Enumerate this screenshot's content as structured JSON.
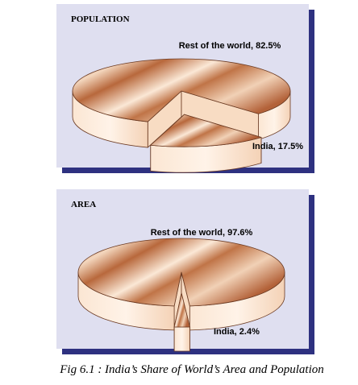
{
  "chart_data": [
    {
      "type": "pie",
      "title": "POPULATION",
      "values": [
        82.5,
        17.5
      ],
      "value_labels": [
        "Rest of the world, 82.5%",
        "India, 17.5%"
      ]
    },
    {
      "type": "pie",
      "title": "AREA",
      "values": [
        97.6,
        2.4
      ],
      "value_labels": [
        "Rest of the world, 97.6%",
        "India, 2.4%"
      ]
    }
  ],
  "caption": "Fig 6.1 : India’s Share of World’s Area and Population"
}
